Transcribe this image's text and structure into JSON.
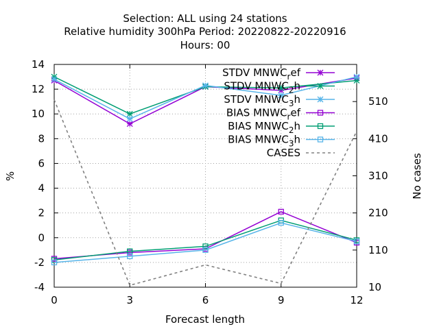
{
  "chart_data": {
    "type": "line",
    "title_lines": [
      "Selection: ALL using    24 stations",
      "Relative humidity 300hPa   Period: 20220822-20220916",
      "Hours:  00"
    ],
    "xlabel": "Forecast length",
    "ylabel": "%",
    "y2label": "No cases",
    "x": [
      0,
      3,
      6,
      9,
      12
    ],
    "xlim": [
      0,
      12
    ],
    "ylim": [
      -4,
      14
    ],
    "y2lim": [
      10,
      610
    ],
    "x_ticks": [
      "0",
      "3",
      "6",
      "9",
      "12"
    ],
    "y_ticks": [
      "-4",
      "-2",
      "0",
      "2",
      "4",
      "6",
      "8",
      "10",
      "12",
      "14"
    ],
    "y2_ticks": [
      "10",
      "110",
      "210",
      "310",
      "410",
      "510"
    ],
    "grid": true,
    "legend_position": "top-right",
    "series": [
      {
        "name": "STDV MNWC_ref",
        "label_main": "STDV MNWC",
        "label_sub": "r",
        "label_tail": "ef",
        "values": [
          12.7,
          9.2,
          12.2,
          11.9,
          12.9
        ],
        "color": "#9400d3",
        "marker": "x-star",
        "axis": "y"
      },
      {
        "name": "STDV MNWC_2h",
        "label_main": "STDV MNWC",
        "label_sub": "2",
        "label_tail": "h",
        "values": [
          13.0,
          10.0,
          12.2,
          12.1,
          12.7
        ],
        "color": "#009e73",
        "marker": "x-star",
        "axis": "y"
      },
      {
        "name": "STDV MNWC_3h",
        "label_main": "STDV MNWC",
        "label_sub": "3",
        "label_tail": "h",
        "values": [
          12.8,
          9.6,
          12.3,
          11.5,
          13.0
        ],
        "color": "#56b4e9",
        "marker": "x-star",
        "axis": "y"
      },
      {
        "name": "BIAS MNWC_ref",
        "label_main": "BIAS MNWC",
        "label_sub": "r",
        "label_tail": "ef",
        "values": [
          -1.7,
          -1.2,
          -0.9,
          2.1,
          -0.4
        ],
        "color": "#9400d3",
        "marker": "square",
        "axis": "y"
      },
      {
        "name": "BIAS MNWC_2h",
        "label_main": "BIAS MNWC",
        "label_sub": "2",
        "label_tail": "h",
        "values": [
          -1.8,
          -1.1,
          -0.7,
          1.4,
          -0.2
        ],
        "color": "#009e73",
        "marker": "square",
        "axis": "y"
      },
      {
        "name": "BIAS MNWC_3h",
        "label_main": "BIAS MNWC",
        "label_sub": "3",
        "label_tail": "h",
        "values": [
          -2.0,
          -1.5,
          -1.0,
          1.2,
          -0.3
        ],
        "color": "#56b4e9",
        "marker": "square",
        "axis": "y"
      },
      {
        "name": "CASES",
        "label_main": "CASES",
        "label_sub": "",
        "label_tail": "",
        "values": [
          515,
          15,
          70,
          20,
          430
        ],
        "color": "#808080",
        "marker": "none",
        "dash": true,
        "axis": "y2"
      }
    ]
  }
}
